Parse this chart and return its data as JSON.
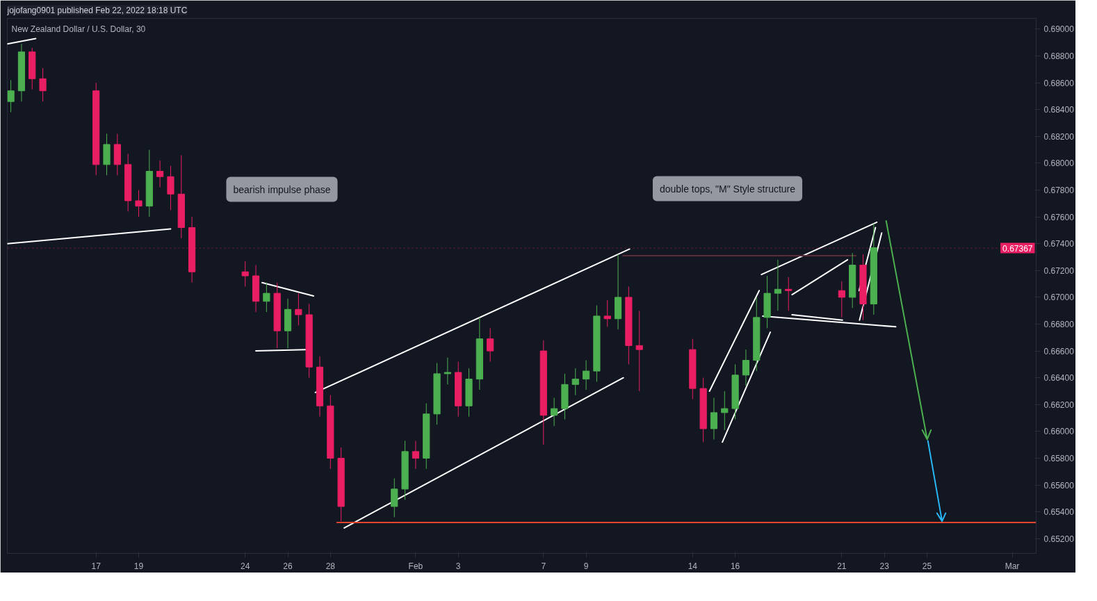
{
  "chart_data": {
    "type": "candlestick",
    "title": "New Zealand Dollar / U.S. Dollar, 30",
    "subtitle": "jojofang0901 published Feb 22, 2022 18:18 UTC",
    "x": [
      "2022-01-13T00:00",
      "2022-01-13T12:00",
      "2022-01-14T00:00",
      "2022-01-14T12:00",
      "2022-01-17T00:00",
      "2022-01-17T12:00",
      "2022-01-18T00:00",
      "2022-01-18T12:00",
      "2022-01-19T00:00",
      "2022-01-19T12:00",
      "2022-01-20T00:00",
      "2022-01-20T12:00",
      "2022-01-21T00:00",
      "2022-01-21T12:00",
      "2022-01-24T00:00",
      "2022-01-24T12:00",
      "2022-01-25T00:00",
      "2022-01-25T12:00",
      "2022-01-26T00:00",
      "2022-01-26T12:00",
      "2022-01-27T00:00",
      "2022-01-27T12:00",
      "2022-01-28T00:00",
      "2022-01-28T12:00",
      "2022-01-31T00:00",
      "2022-01-31T12:00",
      "2022-02-01T00:00",
      "2022-02-01T12:00",
      "2022-02-02T00:00",
      "2022-02-02T12:00",
      "2022-02-03T00:00",
      "2022-02-03T12:00",
      "2022-02-04T00:00",
      "2022-02-04T12:00",
      "2022-02-07T00:00",
      "2022-02-07T12:00",
      "2022-02-08T00:00",
      "2022-02-08T12:00",
      "2022-02-09T00:00",
      "2022-02-09T12:00",
      "2022-02-10T00:00",
      "2022-02-10T12:00",
      "2022-02-11T00:00",
      "2022-02-11T12:00",
      "2022-02-14T00:00",
      "2022-02-14T12:00",
      "2022-02-15T00:00",
      "2022-02-15T12:00",
      "2022-02-16T00:00",
      "2022-02-16T12:00",
      "2022-02-17T00:00",
      "2022-02-17T12:00",
      "2022-02-18T00:00",
      "2022-02-18T12:00",
      "2022-02-21T00:00",
      "2022-02-21T12:00",
      "2022-02-22T00:00",
      "2022-02-22T12:00"
    ],
    "ohlc": [
      [
        0.6846,
        0.6862,
        0.6838,
        0.6854
      ],
      [
        0.6854,
        0.6889,
        0.6846,
        0.6883
      ],
      [
        0.6883,
        0.6886,
        0.6855,
        0.6863
      ],
      [
        0.6863,
        0.6871,
        0.6846,
        0.6854
      ],
      [
        0.6854,
        0.686,
        0.6791,
        0.6799
      ],
      [
        0.6799,
        0.6822,
        0.6791,
        0.6814
      ],
      [
        0.6814,
        0.6822,
        0.6791,
        0.6799
      ],
      [
        0.6799,
        0.6807,
        0.6764,
        0.6772
      ],
      [
        0.6772,
        0.678,
        0.676,
        0.6768
      ],
      [
        0.6768,
        0.681,
        0.676,
        0.6794
      ],
      [
        0.6794,
        0.6802,
        0.6782,
        0.679
      ],
      [
        0.679,
        0.6798,
        0.6765,
        0.6777
      ],
      [
        0.6777,
        0.6806,
        0.6744,
        0.6752
      ],
      [
        0.6752,
        0.676,
        0.6711,
        0.6719
      ],
      [
        0.6719,
        0.6727,
        0.6708,
        0.6716
      ],
      [
        0.6716,
        0.6724,
        0.6689,
        0.6697
      ],
      [
        0.6697,
        0.6711,
        0.6689,
        0.6703
      ],
      [
        0.6703,
        0.6711,
        0.6662,
        0.6675
      ],
      [
        0.6675,
        0.6699,
        0.6662,
        0.6691
      ],
      [
        0.6691,
        0.6703,
        0.6679,
        0.6687
      ],
      [
        0.6687,
        0.6695,
        0.664,
        0.6648
      ],
      [
        0.6648,
        0.6656,
        0.6611,
        0.6619
      ],
      [
        0.6619,
        0.6627,
        0.6572,
        0.658
      ],
      [
        0.658,
        0.6588,
        0.6533,
        0.6544
      ],
      [
        0.6544,
        0.6565,
        0.6536,
        0.6557
      ],
      [
        0.6557,
        0.6593,
        0.6549,
        0.6585
      ],
      [
        0.6585,
        0.6593,
        0.6572,
        0.658
      ],
      [
        0.658,
        0.6621,
        0.6572,
        0.6613
      ],
      [
        0.6613,
        0.6651,
        0.6605,
        0.6643
      ],
      [
        0.6643,
        0.6655,
        0.6635,
        0.6644
      ],
      [
        0.6644,
        0.6652,
        0.6611,
        0.6619
      ],
      [
        0.6619,
        0.6647,
        0.6611,
        0.6639
      ],
      [
        0.6639,
        0.6685,
        0.6631,
        0.6669
      ],
      [
        0.6669,
        0.6677,
        0.6652,
        0.666
      ],
      [
        0.666,
        0.6668,
        0.659,
        0.6612
      ],
      [
        0.6612,
        0.6625,
        0.6604,
        0.6617
      ],
      [
        0.6617,
        0.6643,
        0.6609,
        0.6635
      ],
      [
        0.6635,
        0.6647,
        0.6627,
        0.6639
      ],
      [
        0.6639,
        0.6653,
        0.6631,
        0.6645
      ],
      [
        0.6645,
        0.6694,
        0.6637,
        0.6686
      ],
      [
        0.6686,
        0.6698,
        0.6678,
        0.6684
      ],
      [
        0.6684,
        0.6732,
        0.6676,
        0.67
      ],
      [
        0.67,
        0.6708,
        0.665,
        0.6664
      ],
      [
        0.6664,
        0.669,
        0.663,
        0.6661
      ],
      [
        0.6661,
        0.6669,
        0.6624,
        0.6632
      ],
      [
        0.6632,
        0.664,
        0.6592,
        0.6602
      ],
      [
        0.6602,
        0.6625,
        0.6594,
        0.6614
      ],
      [
        0.6614,
        0.663,
        0.6601,
        0.6617
      ],
      [
        0.6617,
        0.665,
        0.6609,
        0.6642
      ],
      [
        0.6642,
        0.6661,
        0.6634,
        0.6653
      ],
      [
        0.6653,
        0.67,
        0.6645,
        0.6685
      ],
      [
        0.6685,
        0.6716,
        0.6677,
        0.6703
      ],
      [
        0.6703,
        0.6728,
        0.669,
        0.6706
      ],
      [
        0.6706,
        0.6715,
        0.669,
        0.6705
      ],
      [
        0.6705,
        0.6712,
        0.6685,
        0.67
      ],
      [
        0.67,
        0.6733,
        0.6692,
        0.6724
      ],
      [
        0.6724,
        0.6732,
        0.6683,
        0.6695
      ],
      [
        0.6695,
        0.6755,
        0.6687,
        0.6737
      ]
    ],
    "colors": [
      "#4caf50",
      "#4caf50",
      "#e91e63",
      "#e91e63",
      "#e91e63",
      "#4caf50",
      "#e91e63",
      "#e91e63",
      "#e91e63",
      "#4caf50",
      "#e91e63",
      "#e91e63",
      "#e91e63",
      "#e91e63",
      "#e91e63",
      "#e91e63",
      "#4caf50",
      "#e91e63",
      "#4caf50",
      "#e91e63",
      "#e91e63",
      "#e91e63",
      "#e91e63",
      "#e91e63",
      "#4caf50",
      "#4caf50",
      "#e91e63",
      "#4caf50",
      "#4caf50",
      "#4caf50",
      "#e91e63",
      "#4caf50",
      "#4caf50",
      "#e91e63",
      "#e91e63",
      "#4caf50",
      "#4caf50",
      "#4caf50",
      "#4caf50",
      "#4caf50",
      "#e91e63",
      "#4caf50",
      "#e91e63",
      "#e91e63",
      "#e91e63",
      "#e91e63",
      "#4caf50",
      "#4caf50",
      "#4caf50",
      "#4caf50",
      "#4caf50",
      "#4caf50",
      "#4caf50",
      "#e91e63",
      "#e91e63",
      "#4caf50",
      "#e91e63",
      "#4caf50"
    ],
    "series": [
      {
        "type": "line",
        "color": "#ffffff",
        "x": [
          "2022-01-12T20:00",
          "2022-01-14T04:00"
        ],
        "values": [
          0.6889,
          0.6893
        ]
      },
      {
        "type": "line",
        "color": "#ffffff",
        "x": [
          "2022-01-12T20:00",
          "2022-01-20T12:00"
        ],
        "values": [
          0.674,
          0.6751
        ]
      },
      {
        "type": "line",
        "color": "#ffffff",
        "x": [
          "2022-01-24T19:00",
          "2022-01-27T05:00"
        ],
        "values": [
          0.6711,
          0.6701
        ]
      },
      {
        "type": "line",
        "color": "#ffffff",
        "x": [
          "2022-01-24T12:00",
          "2022-01-26T20:00"
        ],
        "values": [
          0.666,
          0.6661
        ]
      },
      {
        "type": "line",
        "color": "#ffffff",
        "x": [
          "2022-01-27T07:00",
          "2022-02-11T01:00"
        ],
        "values": [
          0.6629,
          0.6736
        ]
      },
      {
        "type": "line",
        "color": "#ffffff",
        "x": [
          "2022-01-28T15:30",
          "2022-02-10T18:00"
        ],
        "values": [
          0.6528,
          0.664
        ]
      },
      {
        "type": "line",
        "color": "#ffffff",
        "x": [
          "2022-02-14T19:00",
          "2022-02-17T03:00"
        ],
        "values": [
          0.663,
          0.6705
        ]
      },
      {
        "type": "line",
        "color": "#ffffff",
        "x": [
          "2022-02-15T09:30",
          "2022-02-17T15:30"
        ],
        "values": [
          0.6592,
          0.6674
        ]
      },
      {
        "type": "line",
        "color": "#ffffff",
        "x": [
          "2022-02-17T05:30",
          "2022-02-22T15:30"
        ],
        "values": [
          0.6717,
          0.6756
        ]
      },
      {
        "type": "line",
        "color": "#ffffff",
        "x": [
          "2022-02-17T07:00",
          "2022-02-23T12:45"
        ],
        "values": [
          0.6686,
          0.6678
        ]
      },
      {
        "type": "line",
        "color": "#ffffff",
        "x": [
          "2022-02-18T16:00",
          "2022-02-21T06:30"
        ],
        "values": [
          0.6702,
          0.6728
        ]
      },
      {
        "type": "line",
        "color": "#ffffff",
        "x": [
          "2022-02-18T16:00",
          "2022-02-21T00:45"
        ],
        "values": [
          0.6687,
          0.6683
        ]
      },
      {
        "type": "line",
        "color": "#ffffff",
        "x": [
          "2022-02-21T20:00",
          "2022-02-22T21:00"
        ],
        "values": [
          0.6683,
          0.6748
        ]
      },
      {
        "type": "line",
        "color": "#ffffff",
        "x": [
          "2022-02-21T19:30",
          "2022-02-22T14:00"
        ],
        "values": [
          0.6705,
          0.6752
        ]
      },
      {
        "type": "line",
        "color": "#e5452f",
        "x": [
          "2022-01-28T07:30",
          "2022-03-02T03:00"
        ],
        "values": [
          0.6532,
          0.6532
        ]
      },
      {
        "type": "line",
        "color": "#5b2a38",
        "x": [
          "2022-02-10T17:30",
          "2022-02-21T16:00"
        ],
        "values": [
          0.6731,
          0.6731
        ]
      },
      {
        "type": "line",
        "color": "#4caf50",
        "x": [
          "2022-02-23T02:00",
          "2022-02-25T00:15",
          "2022-02-24T18:45",
          "2022-02-25T00:15",
          "2022-02-25T04:30"
        ],
        "values": [
          0.6757,
          0.6594,
          0.6601,
          0.6594,
          0.6601
        ]
      },
      {
        "type": "line",
        "color": "#29b6f6",
        "x": [
          "2022-02-25T01:00",
          "2022-02-25T17:00",
          "2022-02-25T11:15",
          "2022-02-25T17:00",
          "2022-02-25T21:00"
        ],
        "values": [
          0.6593,
          0.6533,
          0.6539,
          0.6533,
          0.6539
        ]
      }
    ],
    "annotations": [
      "bearish impulse phase",
      "double tops, \"M\" Style structure"
    ],
    "ref_lines": [
      {
        "axis": "y",
        "value": 0.67367,
        "label": "0.67367",
        "color": "#e91e63",
        "line_style": "dotted"
      }
    ],
    "xlim": [
      "2022-01-12T20:00",
      "2022-03-02T03:00"
    ],
    "xticks": [
      {
        "value": "2022-01-17",
        "label": "17"
      },
      {
        "value": "2022-01-19",
        "label": "19"
      },
      {
        "value": "2022-01-24",
        "label": "24"
      },
      {
        "value": "2022-01-26",
        "label": "26"
      },
      {
        "value": "2022-01-28",
        "label": "28"
      },
      {
        "value": "2022-02-01",
        "label": "Feb"
      },
      {
        "value": "2022-02-03",
        "label": "3"
      },
      {
        "value": "2022-02-07",
        "label": "7"
      },
      {
        "value": "2022-02-09",
        "label": "9"
      },
      {
        "value": "2022-02-14",
        "label": "14"
      },
      {
        "value": "2022-02-16",
        "label": "16"
      },
      {
        "value": "2022-02-21",
        "label": "21"
      },
      {
        "value": "2022-02-23",
        "label": "23"
      },
      {
        "value": "2022-02-25",
        "label": "25"
      },
      {
        "value": "2022-03-01",
        "label": "Mar"
      }
    ],
    "ylim": [
      0.6509,
      0.6908
    ],
    "yticks": [
      {
        "value": 0.652,
        "label": "0.65200"
      },
      {
        "value": 0.654,
        "label": "0.65400"
      },
      {
        "value": 0.656,
        "label": "0.65600"
      },
      {
        "value": 0.658,
        "label": "0.65800"
      },
      {
        "value": 0.66,
        "label": "0.66000"
      },
      {
        "value": 0.662,
        "label": "0.66200"
      },
      {
        "value": 0.664,
        "label": "0.66400"
      },
      {
        "value": 0.666,
        "label": "0.66600"
      },
      {
        "value": 0.668,
        "label": "0.66800"
      },
      {
        "value": 0.67,
        "label": "0.67000"
      },
      {
        "value": 0.672,
        "label": "0.67200"
      },
      {
        "value": 0.674,
        "label": "0.67400"
      },
      {
        "value": 0.676,
        "label": "0.67600"
      },
      {
        "value": 0.678,
        "label": "0.67800"
      },
      {
        "value": 0.68,
        "label": "0.68000"
      },
      {
        "value": 0.682,
        "label": "0.68200"
      },
      {
        "value": 0.684,
        "label": "0.68400"
      },
      {
        "value": 0.686,
        "label": "0.68600"
      },
      {
        "value": 0.688,
        "label": "0.68800"
      },
      {
        "value": 0.69,
        "label": "0.69000"
      }
    ],
    "grid": false
  }
}
